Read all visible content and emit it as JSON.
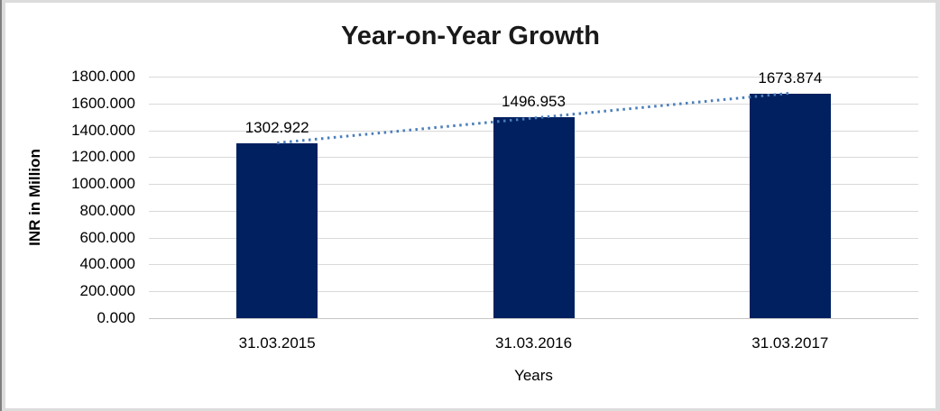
{
  "chart_data": {
    "type": "bar",
    "title": "Year-on-Year Growth",
    "categories": [
      "31.03.2015",
      "31.03.2016",
      "31.03.2017"
    ],
    "values": [
      1302.922,
      1496.953,
      1673.874
    ],
    "value_labels": [
      "1302.922",
      "1496.953",
      "1673.874"
    ],
    "xlabel": "Years",
    "ylabel": "INR in Million",
    "ylim": [
      0,
      1800
    ],
    "y_tick_step": 200,
    "y_tick_labels": [
      "1800.000",
      "1600.000",
      "1400.000",
      "1200.000",
      "1000.000",
      "800.000",
      "600.000",
      "400.000",
      "200.000",
      "0.000"
    ],
    "grid": true,
    "legend": "none",
    "trendline": {
      "type": "linear",
      "style": "dotted"
    },
    "colors": {
      "bar": "#002060",
      "trendline": "#4a7ebb",
      "gridline": "#d9d9d9",
      "axis_line": "#c6c6c6",
      "title_text": "#1a1a1a",
      "label_text": "#000000"
    }
  }
}
